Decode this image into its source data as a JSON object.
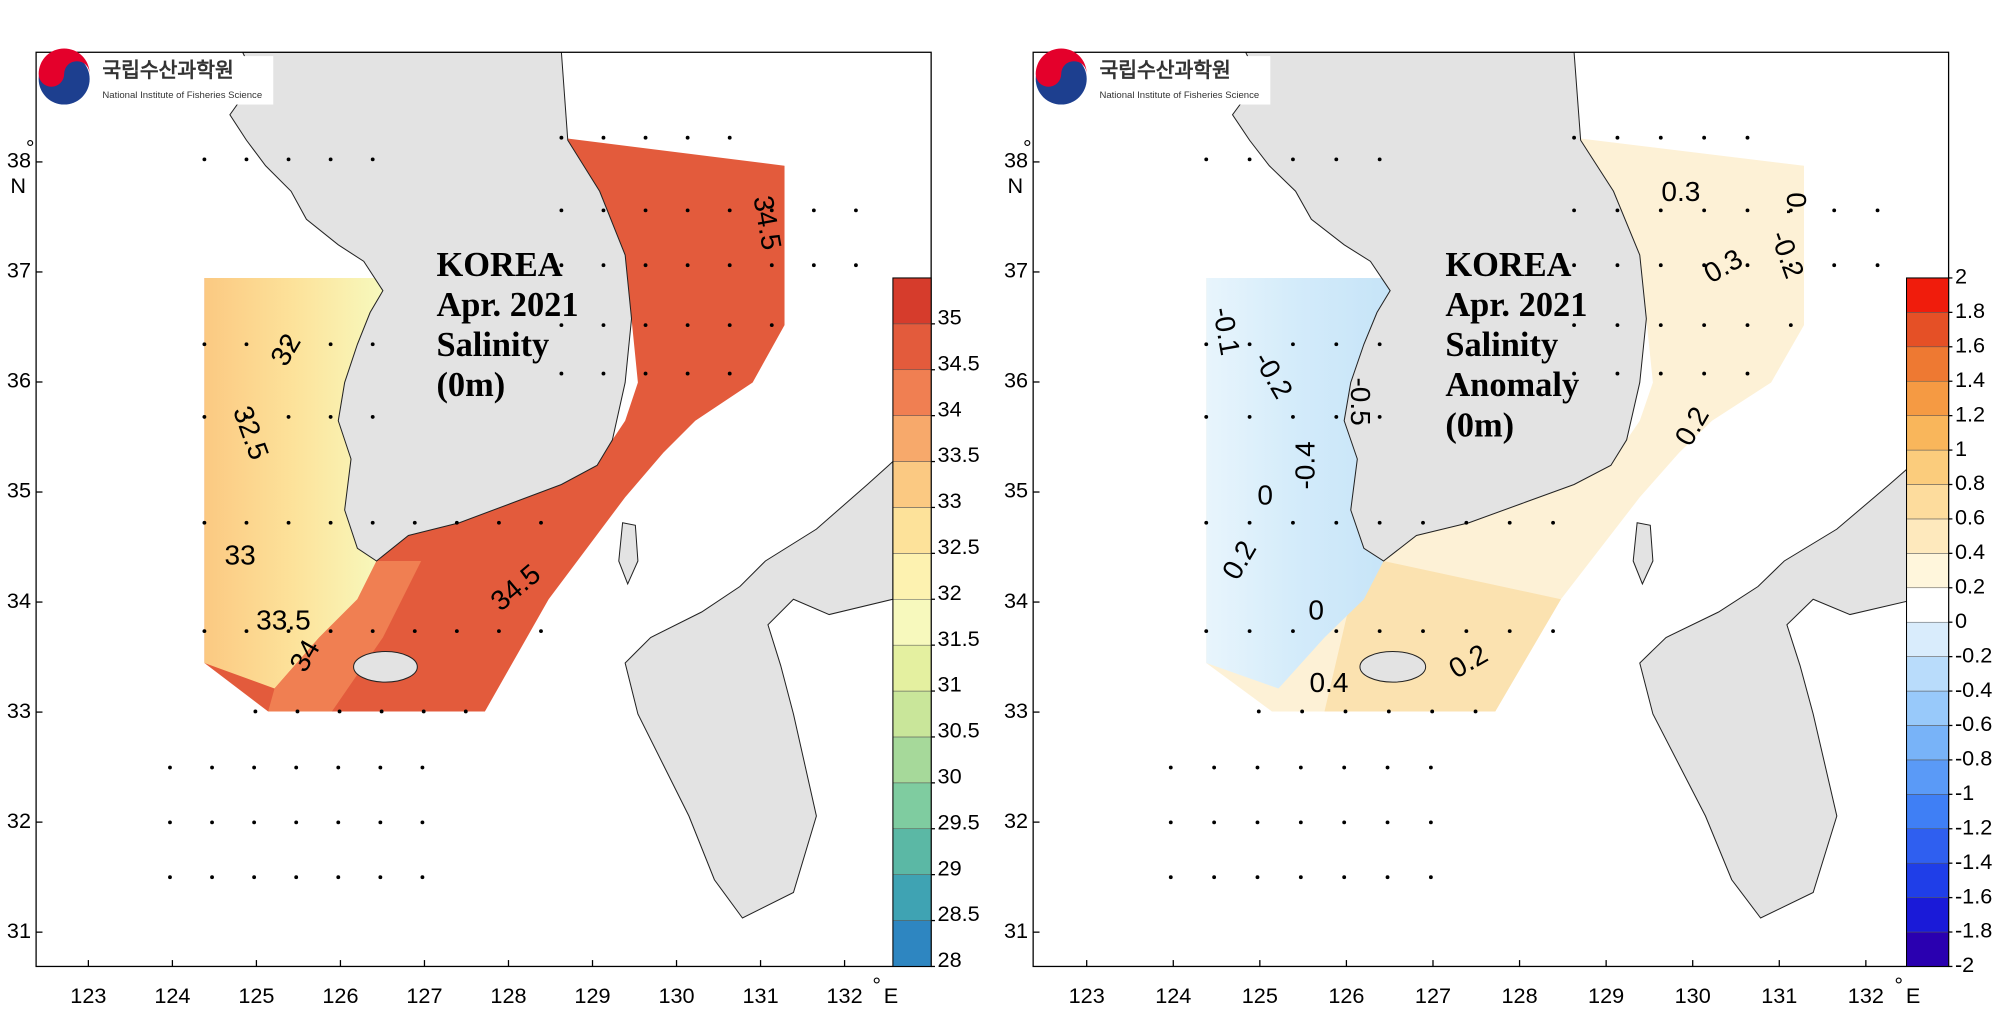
{
  "map": {
    "degree": "°",
    "lon_unit": "E",
    "lat_unit": "N",
    "lon_ticks": [
      123,
      124,
      125,
      126,
      127,
      128,
      129,
      130,
      131,
      132
    ],
    "lat_ticks": [
      31,
      32,
      33,
      34,
      35,
      36,
      37,
      38
    ]
  },
  "panels": [
    {
      "logo": {
        "korean": "국립수산과학원",
        "english": "National Institute of Fisheries Science"
      },
      "title": [
        "KOREA",
        "Apr. 2021",
        "Salinity",
        "(0m)"
      ],
      "contour_labels": [
        "34.5",
        "32",
        "32.5",
        "33",
        "33.5",
        "34",
        "34.5"
      ],
      "colorbar": {
        "range": [
          28,
          35.5
        ],
        "ticks": [
          28,
          28.5,
          29,
          29.5,
          30,
          30.5,
          31,
          31.5,
          32,
          32.5,
          33,
          33.5,
          34,
          34.5,
          35
        ],
        "colors": [
          "#2e86c1",
          "#3fa3b3",
          "#5bb8a5",
          "#7fcca0",
          "#a6d99a",
          "#c9e69a",
          "#e4f0a0",
          "#f7f9bd",
          "#fdf2b0",
          "#fde29a",
          "#fbc982",
          "#f7a96b",
          "#f07f52",
          "#e35b3c",
          "#d63c2c"
        ]
      }
    },
    {
      "logo": {
        "korean": "국립수산과학원",
        "english": "National Institute of Fisheries Science"
      },
      "title": [
        "KOREA",
        "Apr. 2021",
        "Salinity",
        "Anomaly",
        "(0m)"
      ],
      "contour_labels": [
        "0.3",
        "0.3",
        "0.2",
        "0.2",
        "0.4",
        "-0.1",
        "-0.2",
        "-0.5",
        "-0.4",
        "0",
        "0",
        "0.2",
        "-0.2",
        "0."
      ],
      "colorbar": {
        "range": [
          -2,
          2
        ],
        "ticks": [
          -2,
          -1.8,
          -1.6,
          -1.4,
          -1.2,
          -1,
          -0.8,
          -0.6,
          -0.4,
          -0.2,
          0,
          0.2,
          0.4,
          0.6,
          0.8,
          1,
          1.2,
          1.4,
          1.6,
          1.8,
          2
        ],
        "colors": [
          "#2a00b0",
          "#1a1ad8",
          "#1f3ee8",
          "#2f5ff0",
          "#3f7ff5",
          "#5a9af7",
          "#78b3f8",
          "#98c9fa",
          "#b9dcfb",
          "#d9ecfc",
          "#ffffff",
          "#fff6dc",
          "#fee9bd",
          "#fddc9d",
          "#fbcc7c",
          "#f9b65b",
          "#f59a43",
          "#ee7932",
          "#e55026",
          "#f01c0c"
        ]
      }
    }
  ]
}
